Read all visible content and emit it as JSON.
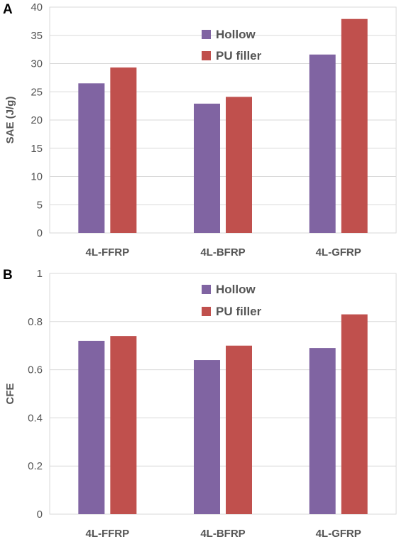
{
  "chart_data": [
    {
      "type": "bar",
      "panel_label": "A",
      "categories": [
        "4L-FFRP",
        "4L-BFRP",
        "4L-GFRP"
      ],
      "series": [
        {
          "name": "Hollow",
          "color": "#8064a2",
          "values": [
            26.5,
            22.9,
            31.6
          ]
        },
        {
          "name": "PU filler",
          "color": "#c0504d",
          "values": [
            29.3,
            24.1,
            37.9
          ]
        }
      ],
      "ylabel": "SAE (J/g)",
      "xlabel": "",
      "ylim": [
        0,
        40
      ],
      "yticks": [
        "0",
        "5",
        "10",
        "15",
        "20",
        "25",
        "30",
        "35",
        "40"
      ],
      "grid": true,
      "legend_position": "top-center"
    },
    {
      "type": "bar",
      "panel_label": "B",
      "categories": [
        "4L-FFRP",
        "4L-BFRP",
        "4L-GFRP"
      ],
      "series": [
        {
          "name": "Hollow",
          "color": "#8064a2",
          "values": [
            0.72,
            0.64,
            0.69
          ]
        },
        {
          "name": "PU filler",
          "color": "#c0504d",
          "values": [
            0.74,
            0.7,
            0.83
          ]
        }
      ],
      "ylabel": "CFE",
      "xlabel": "",
      "ylim": [
        0,
        1
      ],
      "yticks": [
        "0",
        "0.2",
        "0.4",
        "0.6",
        "0.8",
        "1"
      ],
      "grid": true,
      "legend_position": "top-center"
    }
  ]
}
